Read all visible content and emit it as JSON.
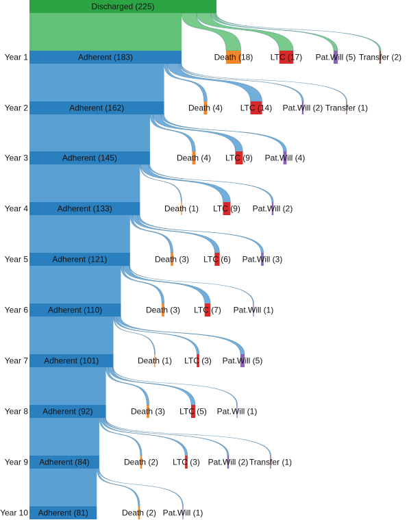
{
  "diagram": {
    "root": {
      "label": "Discharged (225)",
      "value": 225
    },
    "years": [
      {
        "year_label": "Year 1",
        "adherent_label": "Adherent (183)",
        "adherent": 183,
        "exits": [
          {
            "type": "death",
            "label": "Death (18)",
            "value": 18
          },
          {
            "type": "ltc",
            "label": "LTC (17)",
            "value": 17
          },
          {
            "type": "patwill",
            "label": "Pat.Will (5)",
            "value": 5
          },
          {
            "type": "transfer",
            "label": "Transfer (2)",
            "value": 2
          }
        ]
      },
      {
        "year_label": "Year 2",
        "adherent_label": "Adherent (162)",
        "adherent": 162,
        "exits": [
          {
            "type": "death",
            "label": "Death (4)",
            "value": 4
          },
          {
            "type": "ltc",
            "label": "LTC (14)",
            "value": 14
          },
          {
            "type": "patwill",
            "label": "Pat.Will (2)",
            "value": 2
          },
          {
            "type": "transfer",
            "label": "Transfer (1)",
            "value": 1
          }
        ]
      },
      {
        "year_label": "Year 3",
        "adherent_label": "Adherent (145)",
        "adherent": 145,
        "exits": [
          {
            "type": "death",
            "label": "Death (4)",
            "value": 4
          },
          {
            "type": "ltc",
            "label": "LTC (9)",
            "value": 9
          },
          {
            "type": "patwill",
            "label": "Pat.Will (4)",
            "value": 4
          }
        ]
      },
      {
        "year_label": "Year 4",
        "adherent_label": "Adherent (133)",
        "adherent": 133,
        "exits": [
          {
            "type": "death",
            "label": "Death (1)",
            "value": 1
          },
          {
            "type": "ltc",
            "label": "LTC (9)",
            "value": 9
          },
          {
            "type": "patwill",
            "label": "Pat.Will (2)",
            "value": 2
          }
        ]
      },
      {
        "year_label": "Year 5",
        "adherent_label": "Adherent (121)",
        "adherent": 121,
        "exits": [
          {
            "type": "death",
            "label": "Death (3)",
            "value": 3
          },
          {
            "type": "ltc",
            "label": "LTC (6)",
            "value": 6
          },
          {
            "type": "patwill",
            "label": "Pat.Will (3)",
            "value": 3
          }
        ]
      },
      {
        "year_label": "Year 6",
        "adherent_label": "Adherent (110)",
        "adherent": 110,
        "exits": [
          {
            "type": "death",
            "label": "Death (3)",
            "value": 3
          },
          {
            "type": "ltc",
            "label": "LTC (7)",
            "value": 7
          },
          {
            "type": "patwill",
            "label": "Pat.Will (1)",
            "value": 1
          }
        ]
      },
      {
        "year_label": "Year 7",
        "adherent_label": "Adherent (101)",
        "adherent": 101,
        "exits": [
          {
            "type": "death",
            "label": "Death (1)",
            "value": 1
          },
          {
            "type": "ltc",
            "label": "LTC (3)",
            "value": 3
          },
          {
            "type": "patwill",
            "label": "Pat.Will (5)",
            "value": 5
          }
        ]
      },
      {
        "year_label": "Year 8",
        "adherent_label": "Adherent (92)",
        "adherent": 92,
        "exits": [
          {
            "type": "death",
            "label": "Death (3)",
            "value": 3
          },
          {
            "type": "ltc",
            "label": "LTC (5)",
            "value": 5
          },
          {
            "type": "patwill",
            "label": "Pat.Will (1)",
            "value": 1
          }
        ]
      },
      {
        "year_label": "Year 9",
        "adherent_label": "Adherent (84)",
        "adherent": 84,
        "exits": [
          {
            "type": "death",
            "label": "Death (2)",
            "value": 2
          },
          {
            "type": "ltc",
            "label": "LTC (3)",
            "value": 3
          },
          {
            "type": "patwill",
            "label": "Pat.Will (2)",
            "value": 2
          },
          {
            "type": "transfer",
            "label": "Transfer (1)",
            "value": 1
          }
        ]
      },
      {
        "year_label": "Year 10",
        "adherent_label": "Adherent (81)",
        "adherent": 81,
        "exits": [
          {
            "type": "death",
            "label": "Death (2)",
            "value": 2
          },
          {
            "type": "patwill",
            "label": "Pat.Will (1)",
            "value": 1
          }
        ]
      }
    ],
    "colors": {
      "root_bar": "#2ca444",
      "root_flow": "#61c177",
      "adherent_bar": "#2a7fbf",
      "adherent_flow": "#5aa0d3",
      "death": "#f0872a",
      "ltc": "#d62a2a",
      "patwill": "#8b62b8",
      "transfer": "#8c5a4a"
    }
  }
}
